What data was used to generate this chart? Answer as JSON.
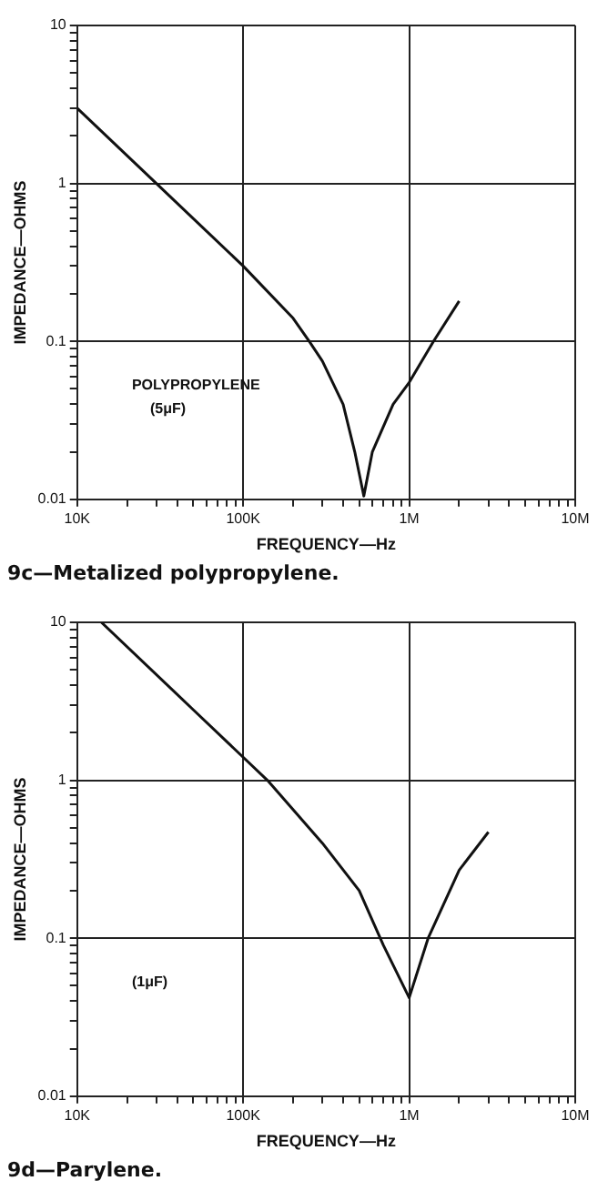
{
  "chart_data": [
    {
      "type": "line",
      "title": "9c—Metalized polypropylene.",
      "xlabel": "FREQUENCY—Hz",
      "ylabel": "IMPEDANCE—OHMS",
      "annotations": [
        "POLYPROPYLENE",
        "(5μF)"
      ],
      "series": [
        {
          "color": "#111111",
          "x": [
            10000,
            30000,
            100000,
            200000,
            250000,
            300000,
            400000,
            470000,
            533000,
            600000,
            800000,
            1000000,
            1400000,
            2000000
          ],
          "values": [
            3,
            1,
            0.3,
            0.14,
            0.1,
            0.075,
            0.04,
            0.02,
            0.0105,
            0.02,
            0.04,
            0.055,
            0.1,
            0.18
          ]
        }
      ],
      "xlim": [
        10000,
        10000000
      ],
      "ylim": [
        0.01,
        10
      ],
      "xticks": [
        {
          "value": 10000,
          "label": "10K"
        },
        {
          "value": 20000,
          "label": null
        },
        {
          "value": 30000,
          "label": null
        },
        {
          "value": 40000,
          "label": null
        },
        {
          "value": 50000,
          "label": null
        },
        {
          "value": 60000,
          "label": null
        },
        {
          "value": 70000,
          "label": null
        },
        {
          "value": 80000,
          "label": null
        },
        {
          "value": 90000,
          "label": null
        },
        {
          "value": 100000,
          "label": "100K"
        },
        {
          "value": 200000,
          "label": null
        },
        {
          "value": 300000,
          "label": null
        },
        {
          "value": 400000,
          "label": null
        },
        {
          "value": 500000,
          "label": null
        },
        {
          "value": 600000,
          "label": null
        },
        {
          "value": 700000,
          "label": null
        },
        {
          "value": 800000,
          "label": null
        },
        {
          "value": 900000,
          "label": null
        },
        {
          "value": 1000000,
          "label": "1M"
        },
        {
          "value": 2000000,
          "label": null
        },
        {
          "value": 3000000,
          "label": null
        },
        {
          "value": 4000000,
          "label": null
        },
        {
          "value": 5000000,
          "label": null
        },
        {
          "value": 6000000,
          "label": null
        },
        {
          "value": 7000000,
          "label": null
        },
        {
          "value": 8000000,
          "label": null
        },
        {
          "value": 9000000,
          "label": null
        },
        {
          "value": 10000000,
          "label": "10M"
        }
      ],
      "yticks": [
        0.01,
        {
          "value": 0.02,
          "label": null
        },
        {
          "value": 0.03,
          "label": null
        },
        {
          "value": 0.04,
          "label": null
        },
        {
          "value": 0.05,
          "label": null
        },
        {
          "value": 0.06,
          "label": null
        },
        {
          "value": 0.07,
          "label": null
        },
        {
          "value": 0.08,
          "label": null
        },
        {
          "value": 0.09,
          "label": null
        },
        0.1,
        {
          "value": 0.2,
          "label": null
        },
        {
          "value": 0.3,
          "label": null
        },
        {
          "value": 0.4,
          "label": null
        },
        {
          "value": 0.5,
          "label": null
        },
        {
          "value": 0.6,
          "label": null
        },
        {
          "value": 0.7,
          "label": null
        },
        {
          "value": 0.8,
          "label": null
        },
        {
          "value": 0.9,
          "label": null
        },
        1,
        {
          "value": 2,
          "label": null
        },
        {
          "value": 3,
          "label": null
        },
        {
          "value": 4,
          "label": null
        },
        {
          "value": 5,
          "label": null
        },
        {
          "value": 6,
          "label": null
        },
        {
          "value": 7,
          "label": null
        },
        {
          "value": 8,
          "label": null
        },
        {
          "value": 9,
          "label": null
        },
        10
      ],
      "log": "xy",
      "grid": true,
      "legend": false,
      "marker": "none",
      "line_style": "solid"
    },
    {
      "type": "line",
      "title": "9d—Parylene.",
      "xlabel": "FREQUENCY—Hz",
      "ylabel": "IMPEDANCE—OHMS",
      "annotations": [
        "(1μF)"
      ],
      "series": [
        {
          "color": "#111111",
          "x": [
            14000,
            50000,
            100000,
            140000,
            300000,
            500000,
            700000,
            1000000,
            1300000,
            2000000,
            3000000
          ],
          "values": [
            10,
            2.8,
            1.4,
            1,
            0.4,
            0.2,
            0.09,
            0.042,
            0.1,
            0.27,
            0.47
          ]
        }
      ],
      "xlim": [
        10000,
        10000000
      ],
      "ylim": [
        0.01,
        10
      ],
      "xticks": [
        {
          "value": 10000,
          "label": "10K"
        },
        {
          "value": 20000,
          "label": null
        },
        {
          "value": 30000,
          "label": null
        },
        {
          "value": 40000,
          "label": null
        },
        {
          "value": 50000,
          "label": null
        },
        {
          "value": 60000,
          "label": null
        },
        {
          "value": 70000,
          "label": null
        },
        {
          "value": 80000,
          "label": null
        },
        {
          "value": 90000,
          "label": null
        },
        {
          "value": 100000,
          "label": "100K"
        },
        {
          "value": 200000,
          "label": null
        },
        {
          "value": 300000,
          "label": null
        },
        {
          "value": 400000,
          "label": null
        },
        {
          "value": 500000,
          "label": null
        },
        {
          "value": 600000,
          "label": null
        },
        {
          "value": 700000,
          "label": null
        },
        {
          "value": 800000,
          "label": null
        },
        {
          "value": 900000,
          "label": null
        },
        {
          "value": 1000000,
          "label": "1M"
        },
        {
          "value": 2000000,
          "label": null
        },
        {
          "value": 3000000,
          "label": null
        },
        {
          "value": 4000000,
          "label": null
        },
        {
          "value": 5000000,
          "label": null
        },
        {
          "value": 6000000,
          "label": null
        },
        {
          "value": 7000000,
          "label": null
        },
        {
          "value": 8000000,
          "label": null
        },
        {
          "value": 9000000,
          "label": null
        },
        {
          "value": 10000000,
          "label": "10M"
        }
      ],
      "yticks": [
        0.01,
        {
          "value": 0.02,
          "label": null
        },
        {
          "value": 0.03,
          "label": null
        },
        {
          "value": 0.04,
          "label": null
        },
        {
          "value": 0.05,
          "label": null
        },
        {
          "value": 0.06,
          "label": null
        },
        {
          "value": 0.07,
          "label": null
        },
        {
          "value": 0.08,
          "label": null
        },
        {
          "value": 0.09,
          "label": null
        },
        0.1,
        {
          "value": 0.2,
          "label": null
        },
        {
          "value": 0.3,
          "label": null
        },
        {
          "value": 0.4,
          "label": null
        },
        {
          "value": 0.5,
          "label": null
        },
        {
          "value": 0.6,
          "label": null
        },
        {
          "value": 0.7,
          "label": null
        },
        {
          "value": 0.8,
          "label": null
        },
        {
          "value": 0.9,
          "label": null
        },
        1,
        {
          "value": 2,
          "label": null
        },
        {
          "value": 3,
          "label": null
        },
        {
          "value": 4,
          "label": null
        },
        {
          "value": 5,
          "label": null
        },
        {
          "value": 6,
          "label": null
        },
        {
          "value": 7,
          "label": null
        },
        {
          "value": 8,
          "label": null
        },
        {
          "value": 9,
          "label": null
        },
        10
      ],
      "log": "xy",
      "grid": true,
      "legend": false,
      "marker": "none",
      "line_style": "solid"
    }
  ]
}
